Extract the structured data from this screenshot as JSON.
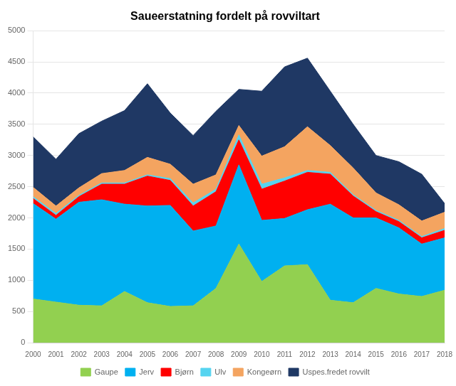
{
  "chart_data": {
    "type": "area",
    "title": "Saueerstatning fordelt på rovviltart",
    "x": [
      2000,
      2001,
      2002,
      2003,
      2004,
      2005,
      2006,
      2007,
      2008,
      2009,
      2010,
      2011,
      2012,
      2013,
      2014,
      2015,
      2016,
      2017,
      2018
    ],
    "series": [
      {
        "name": "Gaupe",
        "color": "#92d050",
        "values": [
          700,
          650,
          600,
          590,
          820,
          640,
          580,
          590,
          870,
          1580,
          980,
          1230,
          1250,
          680,
          640,
          870,
          780,
          740,
          840
        ]
      },
      {
        "name": "Jerv",
        "color": "#00b0f0",
        "values": [
          1530,
          1330,
          1650,
          1700,
          1400,
          1550,
          1620,
          1200,
          1000,
          1270,
          980,
          760,
          880,
          1540,
          1360,
          1130,
          1060,
          840,
          840
        ]
      },
      {
        "name": "Bjørn",
        "color": "#ff0000",
        "values": [
          80,
          60,
          90,
          250,
          320,
          480,
          400,
          400,
          550,
          400,
          500,
          600,
          600,
          480,
          350,
          100,
          100,
          100,
          120
        ]
      },
      {
        "name": "Ulv",
        "color": "#56d4f0",
        "values": [
          30,
          30,
          20,
          20,
          20,
          20,
          30,
          50,
          40,
          80,
          80,
          50,
          30,
          30,
          20,
          20,
          20,
          20,
          30
        ]
      },
      {
        "name": "Kongeørn",
        "color": "#f4a460",
        "values": [
          150,
          120,
          120,
          150,
          200,
          280,
          230,
          300,
          230,
          150,
          450,
          500,
          700,
          430,
          430,
          280,
          250,
          250,
          260
        ]
      },
      {
        "name": "Uspes.fredet rovvilt",
        "color": "#1f3864",
        "values": [
          810,
          750,
          870,
          840,
          960,
          1180,
          820,
          780,
          1020,
          580,
          1040,
          1280,
          1100,
          870,
          700,
          600,
          690,
          750,
          140
        ]
      }
    ],
    "xlim": [
      2000,
      2018
    ],
    "xticks": [
      2000,
      2001,
      2002,
      2003,
      2004,
      2005,
      2006,
      2007,
      2008,
      2009,
      2010,
      2011,
      2012,
      2013,
      2014,
      2015,
      2016,
      2017,
      2018
    ],
    "ylim": [
      0,
      5000
    ],
    "yticks": [
      0,
      500,
      1000,
      1500,
      2000,
      2500,
      3000,
      3500,
      4000,
      4500,
      5000
    ],
    "stacked": true,
    "grid": "y",
    "legend": "bottom"
  }
}
